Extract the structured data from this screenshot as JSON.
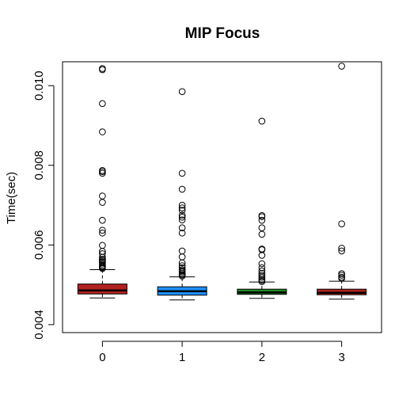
{
  "chart_data": {
    "type": "boxplot",
    "title": "MIP Focus",
    "xlabel": "",
    "ylabel": "Time(sec)",
    "ylim": [
      0.0038,
      0.0106
    ],
    "yticks": [
      "0.004",
      "0.006",
      "0.008",
      "0.010"
    ],
    "ytick_values": [
      0.004,
      0.006,
      0.008,
      0.01
    ],
    "categories": [
      "0",
      "1",
      "2",
      "3"
    ],
    "grid": false,
    "legend": "none",
    "boxes": [
      {
        "category": "0",
        "color": "#b22222",
        "whisker_low": 0.00467,
        "q1": 0.00477,
        "median": 0.00486,
        "q3": 0.00502,
        "whisker_high": 0.00538,
        "outliers": [
          0.01043,
          0.0104,
          0.00955,
          0.00884,
          0.00787,
          0.00784,
          0.0078,
          0.00723,
          0.00707,
          0.00662,
          0.00637,
          0.0063,
          0.00599,
          0.00584,
          0.00578,
          0.00569,
          0.00564,
          0.00561,
          0.00558,
          0.00556,
          0.00552,
          0.00548,
          0.00546,
          0.00543,
          0.00541
        ]
      },
      {
        "category": "1",
        "color": "#1e90ff",
        "whisker_low": 0.00462,
        "q1": 0.00474,
        "median": 0.00484,
        "q3": 0.00495,
        "whisker_high": 0.0052,
        "outliers": [
          0.00985,
          0.0078,
          0.0074,
          0.007,
          0.00693,
          0.00687,
          0.00675,
          0.0067,
          0.00663,
          0.00643,
          0.0063,
          0.00585,
          0.0057,
          0.00555,
          0.00548,
          0.00543,
          0.00538,
          0.00535,
          0.00532,
          0.00528,
          0.00525,
          0.00522
        ]
      },
      {
        "category": "2",
        "color": "#228b22",
        "whisker_low": 0.00466,
        "q1": 0.00476,
        "median": 0.00481,
        "q3": 0.00489,
        "whisker_high": 0.00507,
        "outliers": [
          0.00911,
          0.00674,
          0.00671,
          0.00662,
          0.00643,
          0.00627,
          0.0059,
          0.00588,
          0.00574,
          0.00553,
          0.00543,
          0.00535,
          0.00529,
          0.00524,
          0.00519,
          0.00514,
          0.00511,
          0.00508
        ]
      },
      {
        "category": "3",
        "color": "#b22222",
        "whisker_low": 0.00464,
        "q1": 0.00475,
        "median": 0.0048,
        "q3": 0.00489,
        "whisker_high": 0.00509,
        "outliers": [
          0.01049,
          0.00653,
          0.00592,
          0.00585,
          0.00528,
          0.00524,
          0.00519,
          0.00516
        ]
      }
    ]
  }
}
